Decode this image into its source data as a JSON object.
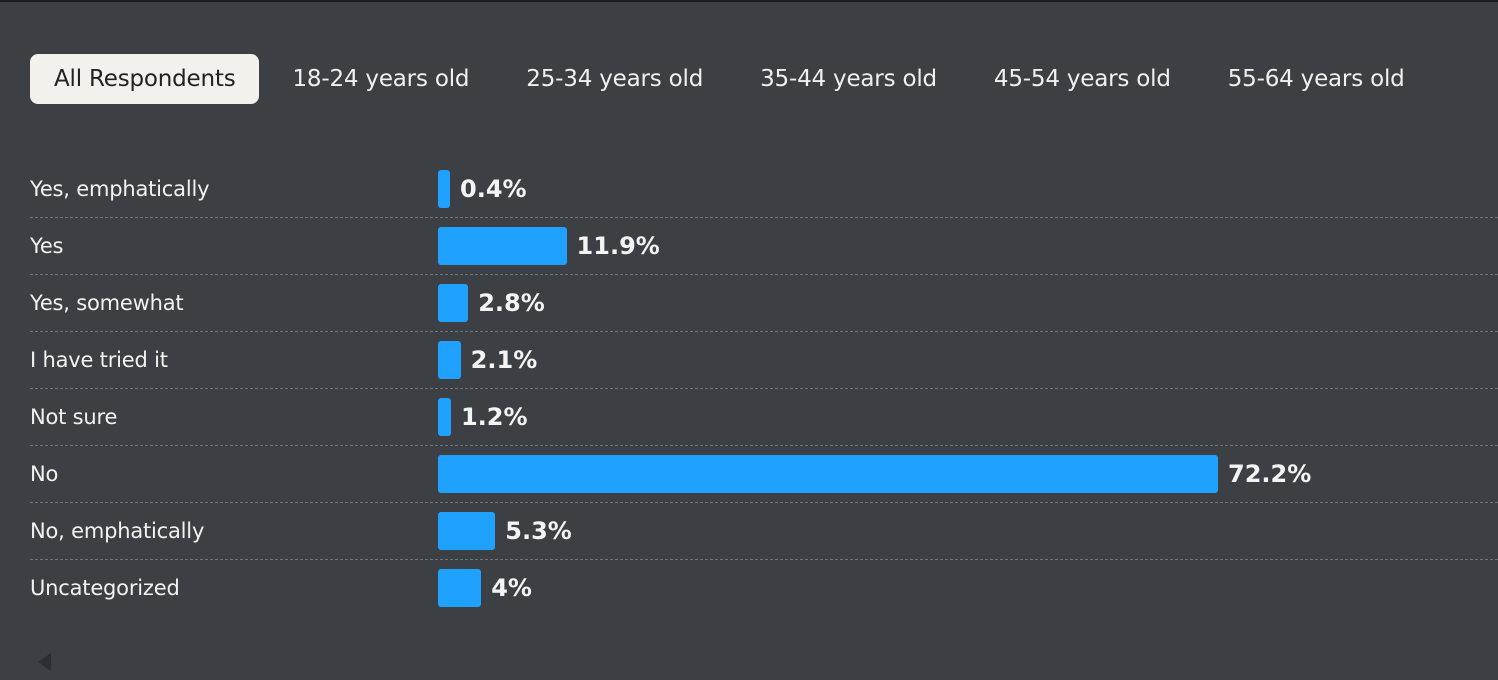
{
  "tabs": [
    {
      "label": "All Respondents",
      "active": true
    },
    {
      "label": "18-24 years old",
      "active": false
    },
    {
      "label": "25-34 years old",
      "active": false
    },
    {
      "label": "35-44 years old",
      "active": false
    },
    {
      "label": "45-54 years old",
      "active": false
    },
    {
      "label": "55-64 years old",
      "active": false
    }
  ],
  "chart_data": {
    "type": "bar",
    "orientation": "horizontal",
    "categories": [
      "Yes, emphatically",
      "Yes",
      "Yes, somewhat",
      "I have tried it",
      "Not sure",
      "No",
      "No, emphatically",
      "Uncategorized"
    ],
    "values": [
      0.4,
      11.9,
      2.8,
      2.1,
      1.2,
      72.2,
      5.3,
      4
    ],
    "value_labels": [
      "0.4%",
      "11.9%",
      "2.8%",
      "2.1%",
      "1.2%",
      "72.2%",
      "5.3%",
      "4%"
    ],
    "unit": "%",
    "xlim": [
      0,
      100
    ],
    "bar_color": "#1ea1ff",
    "grid": false
  },
  "colors": {
    "background": "#3c4045",
    "bar": "#1ea1ff",
    "active_tab_bg": "#f3f1ec",
    "text": "#f2f2f2"
  },
  "icons": {
    "scroll_left": "triangle-left-icon"
  }
}
